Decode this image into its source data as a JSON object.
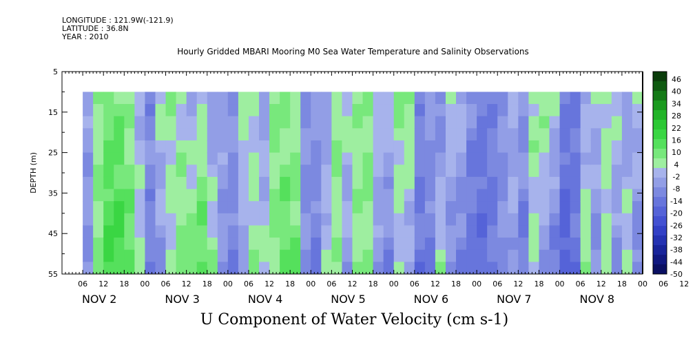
{
  "meta": {
    "longitude": "LONGITUDE : 121.9W(-121.9)",
    "latitude": "LATITUDE : 36.8N",
    "year": "YEAR : 2010"
  },
  "title": "Hourly Gridded MBARI Mooring M0 Sea Water Temperature and Salinity Observations",
  "bottom_title": "U Component of Water Velocity (cm s-1)",
  "colors": {
    "negative": "#7f7fe6",
    "positive": "#38d838"
  },
  "chart_data": {
    "type": "heatmap",
    "title": "Hourly Gridded MBARI Mooring M0 Sea Water Temperature and Salinity Observations",
    "xlabel": "",
    "ylabel": "DEPTH (m)",
    "ylim": [
      55,
      5
    ],
    "y_ticks": [
      5,
      15,
      25,
      35,
      45,
      55
    ],
    "hour_ticks": [
      "06",
      "12",
      "18",
      "00",
      "06",
      "12",
      "18",
      "00",
      "06",
      "12",
      "18",
      "00",
      "06",
      "12",
      "18",
      "00",
      "06",
      "12",
      "18",
      "00",
      "06",
      "12",
      "18",
      "00",
      "06",
      "12",
      "18",
      "00",
      "06",
      "12",
      "18",
      "00"
    ],
    "day_labels": [
      "NOV  2",
      "NOV  3",
      "NOV  4",
      "NOV  5",
      "NOV  6",
      "NOV  7",
      "NOV  8"
    ],
    "colorbar_labels": [
      "46",
      "40",
      "34",
      "28",
      "22",
      "16",
      "10",
      "4",
      "-2",
      "-8",
      "-14",
      "-20",
      "-26",
      "-32",
      "-38",
      "-44",
      "-50"
    ],
    "colorbar_colors": [
      "#0b3d0b",
      "#0f5a10",
      "#147a16",
      "#1a9a1e",
      "#22b428",
      "#2cc834",
      "#3ad643",
      "#55e05c",
      "#78e87c",
      "#9eeea0",
      "#a7b3ec",
      "#929ee6",
      "#7c89e0",
      "#6775dc",
      "#5563d8",
      "#4351d2",
      "#3240c6",
      "#2432b2",
      "#18249a",
      "#101880",
      "#0a0f62"
    ],
    "time_range_hours": [
      0,
      168
    ],
    "data_start_hour": 6,
    "data_top_depth": 10,
    "u_columns": [
      {
        "hour": 6,
        "shallow": -4,
        "deep": -6
      },
      {
        "hour": 9,
        "shallow": 6,
        "deep": 10
      },
      {
        "hour": 12,
        "shallow": 12,
        "deep": 18
      },
      {
        "hour": 15,
        "shallow": 10,
        "deep": 20
      },
      {
        "hour": 18,
        "shallow": 6,
        "deep": 16
      },
      {
        "hour": 21,
        "shallow": -2,
        "deep": 6
      },
      {
        "hour": 24,
        "shallow": -8,
        "deep": -10
      },
      {
        "hour": 27,
        "shallow": 4,
        "deep": -6
      },
      {
        "hour": 30,
        "shallow": 6,
        "deep": 4
      },
      {
        "hour": 33,
        "shallow": 4,
        "deep": 10
      },
      {
        "hour": 36,
        "shallow": -4,
        "deep": 14
      },
      {
        "hour": 39,
        "shallow": 2,
        "deep": 16
      },
      {
        "hour": 42,
        "shallow": -6,
        "deep": 8
      },
      {
        "hour": 45,
        "shallow": -2,
        "deep": -6
      },
      {
        "hour": 48,
        "shallow": -6,
        "deep": -10
      },
      {
        "hour": 51,
        "shallow": 6,
        "deep": -4
      },
      {
        "hour": 54,
        "shallow": 4,
        "deep": 6
      },
      {
        "hour": 57,
        "shallow": -4,
        "deep": 4
      },
      {
        "hour": 60,
        "shallow": 10,
        "deep": 8
      },
      {
        "hour": 63,
        "shallow": 8,
        "deep": 14
      },
      {
        "hour": 66,
        "shallow": 6,
        "deep": 12
      },
      {
        "hour": 69,
        "shallow": -8,
        "deep": -6
      },
      {
        "hour": 72,
        "shallow": -4,
        "deep": -12
      },
      {
        "hour": 75,
        "shallow": -6,
        "deep": 4
      },
      {
        "hour": 78,
        "shallow": 8,
        "deep": 6
      },
      {
        "hour": 81,
        "shallow": 4,
        "deep": -4
      },
      {
        "hour": 84,
        "shallow": 6,
        "deep": 8
      },
      {
        "hour": 87,
        "shallow": 10,
        "deep": 6
      },
      {
        "hour": 90,
        "shallow": 4,
        "deep": -6
      },
      {
        "hour": 93,
        "shallow": 2,
        "deep": -10
      },
      {
        "hour": 96,
        "shallow": 8,
        "deep": 2
      },
      {
        "hour": 99,
        "shallow": 10,
        "deep": -4
      },
      {
        "hour": 102,
        "shallow": -8,
        "deep": -14
      },
      {
        "hour": 105,
        "shallow": -4,
        "deep": -12
      },
      {
        "hour": 108,
        "shallow": -10,
        "deep": 6
      },
      {
        "hour": 111,
        "shallow": 4,
        "deep": -10
      },
      {
        "hour": 114,
        "shallow": 2,
        "deep": -12
      },
      {
        "hour": 117,
        "shallow": -8,
        "deep": -14
      },
      {
        "hour": 120,
        "shallow": -12,
        "deep": -16
      },
      {
        "hour": 123,
        "shallow": -10,
        "deep": -12
      },
      {
        "hour": 126,
        "shallow": -6,
        "deep": -6
      },
      {
        "hour": 129,
        "shallow": -2,
        "deep": -4
      },
      {
        "hour": 132,
        "shallow": -4,
        "deep": -12
      },
      {
        "hour": 135,
        "shallow": 6,
        "deep": 4
      },
      {
        "hour": 138,
        "shallow": 8,
        "deep": -6
      },
      {
        "hour": 141,
        "shallow": 4,
        "deep": -12
      },
      {
        "hour": 144,
        "shallow": -10,
        "deep": -20
      },
      {
        "hour": 147,
        "shallow": -12,
        "deep": -14
      },
      {
        "hour": 150,
        "shallow": -4,
        "deep": 10
      },
      {
        "hour": 153,
        "shallow": 2,
        "deep": -8
      },
      {
        "hour": 156,
        "shallow": 6,
        "deep": 4
      },
      {
        "hour": 159,
        "shallow": 4,
        "deep": -8
      },
      {
        "hour": 162,
        "shallow": -6,
        "deep": 6
      },
      {
        "hour": 165,
        "shallow": 4,
        "deep": -10
      },
      {
        "hour": 168,
        "shallow": -12,
        "deep": -16
      }
    ]
  }
}
